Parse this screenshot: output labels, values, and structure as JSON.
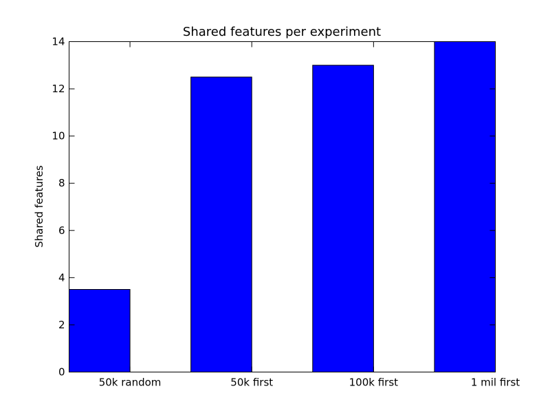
{
  "chart_data": {
    "type": "bar",
    "title": "Shared features per experiment",
    "xlabel": "",
    "ylabel": "Shared features",
    "categories": [
      "50k random",
      "50k first",
      "100k first",
      "1 mil first"
    ],
    "values": [
      3.5,
      12.5,
      13,
      14
    ],
    "ylim": [
      0,
      14
    ],
    "yticks": [
      0,
      2,
      4,
      6,
      8,
      10,
      12,
      14
    ],
    "grid": false,
    "bar_color": "#0000ff"
  }
}
